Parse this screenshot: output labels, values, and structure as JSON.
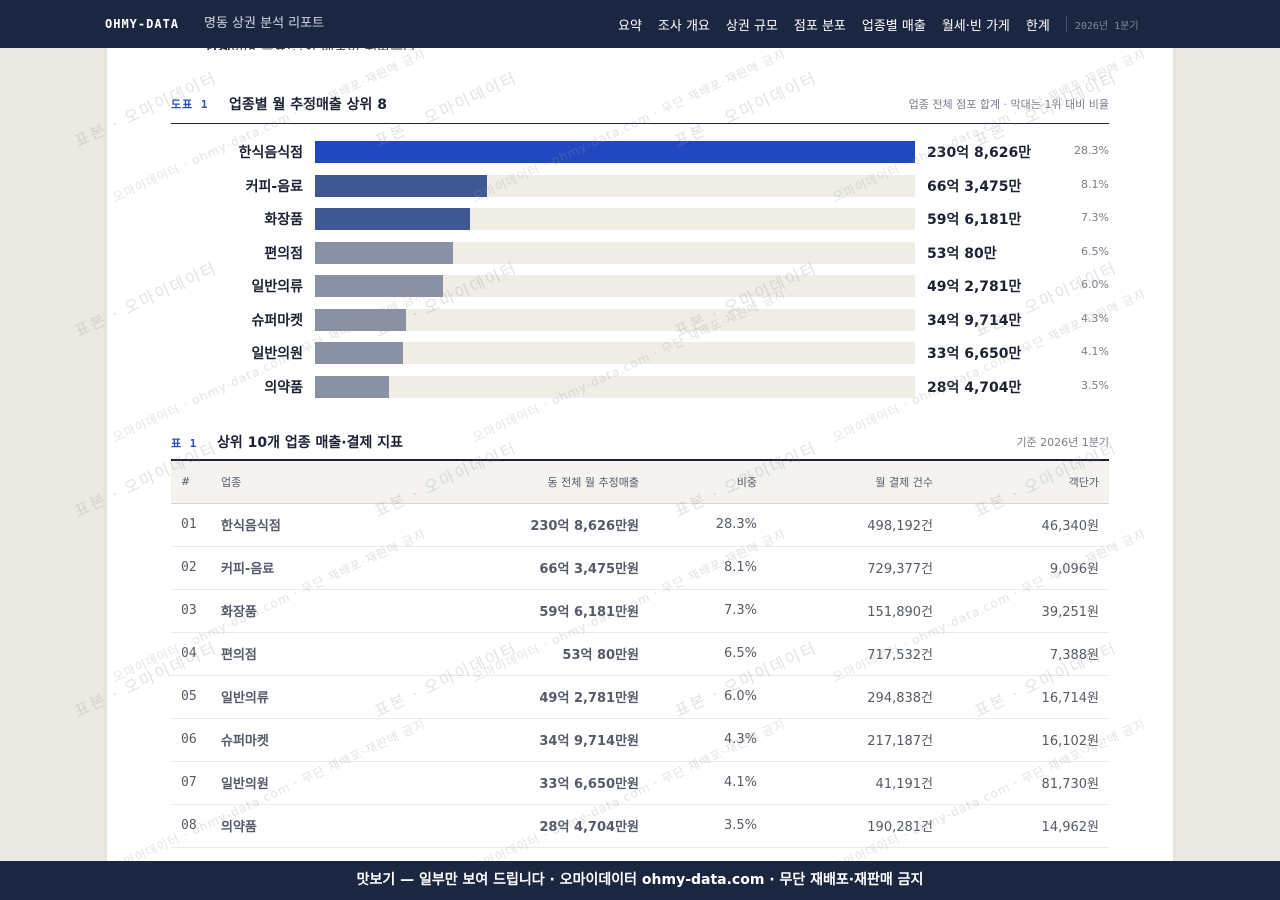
{
  "nav": {
    "brand": "OHMY-DATA",
    "report_title": "명동 상권 분석 리포트",
    "links": [
      "요약",
      "조사 개요",
      "상권 규모",
      "점포 분포",
      "업종별 매출",
      "월세·빈 가게",
      "한계"
    ],
    "period": "2026년 1분기"
  },
  "intro": {
    "bold": "합계",
    "rest": "이며 음료·잡화 매출이 뒤따른다."
  },
  "figure": {
    "tag": "도표 1",
    "title": "업종별 월 추정매출 상위 8",
    "note": "업종 전체 점포 합계 · 막대는 1위 대비 비율",
    "colors": {
      "top": "#2148c0",
      "mid": "#3f5793",
      "low": "#8a91a5",
      "track": "#efede6"
    },
    "bars": [
      {
        "label": "한식음식점",
        "value_text": "230억 8,626만",
        "share": "28.3%",
        "ratio": 1.0,
        "tone": "top"
      },
      {
        "label": "커피-음료",
        "value_text": "66억 3,475만",
        "share": "8.1%",
        "ratio": 0.287,
        "tone": "mid"
      },
      {
        "label": "화장품",
        "value_text": "59억 6,181만",
        "share": "7.3%",
        "ratio": 0.258,
        "tone": "mid"
      },
      {
        "label": "편의점",
        "value_text": "53억 80만",
        "share": "6.5%",
        "ratio": 0.23,
        "tone": "low"
      },
      {
        "label": "일반의류",
        "value_text": "49억 2,781만",
        "share": "6.0%",
        "ratio": 0.213,
        "tone": "low"
      },
      {
        "label": "슈퍼마켓",
        "value_text": "34억 9,714만",
        "share": "4.3%",
        "ratio": 0.152,
        "tone": "low"
      },
      {
        "label": "일반의원",
        "value_text": "33억 6,650만",
        "share": "4.1%",
        "ratio": 0.146,
        "tone": "low"
      },
      {
        "label": "의약품",
        "value_text": "28억 4,704만",
        "share": "3.5%",
        "ratio": 0.123,
        "tone": "low"
      }
    ]
  },
  "table": {
    "tag": "표 1",
    "title": "상위 10개 업종 매출·결제 지표",
    "note": "기준 2026년 1분기",
    "headers": [
      "#",
      "업종",
      "동 전체 월 추정매출",
      "비중",
      "월 결제 건수",
      "객단가"
    ],
    "rows": [
      [
        "01",
        "한식음식점",
        "230억 8,626만원",
        "28.3%",
        "498,192건",
        "46,340원"
      ],
      [
        "02",
        "커피-음료",
        "66억 3,475만원",
        "8.1%",
        "729,377건",
        "9,096원"
      ],
      [
        "03",
        "화장품",
        "59억 6,181만원",
        "7.3%",
        "151,890건",
        "39,251원"
      ],
      [
        "04",
        "편의점",
        "53억 80만원",
        "6.5%",
        "717,532건",
        "7,388원"
      ],
      [
        "05",
        "일반의류",
        "49억 2,781만원",
        "6.0%",
        "294,838건",
        "16,714원"
      ],
      [
        "06",
        "슈퍼마켓",
        "34억 9,714만원",
        "4.3%",
        "217,187건",
        "16,102원"
      ],
      [
        "07",
        "일반의원",
        "33억 6,650만원",
        "4.1%",
        "41,191건",
        "81,730원"
      ],
      [
        "08",
        "의약품",
        "28억 4,704만원",
        "3.5%",
        "190,281건",
        "14,962원"
      ]
    ]
  },
  "watermark": {
    "main": "표본 · 오마이데이터",
    "secondary": "오마이데이터 · ohmy-data.com · 무단 재배포·재판매 금지"
  },
  "footer": {
    "text": "맛보기 — 일부만 보여 드립니다 · 오마이데이터 ohmy-data.com · 무단 재배포·재판매 금지"
  }
}
